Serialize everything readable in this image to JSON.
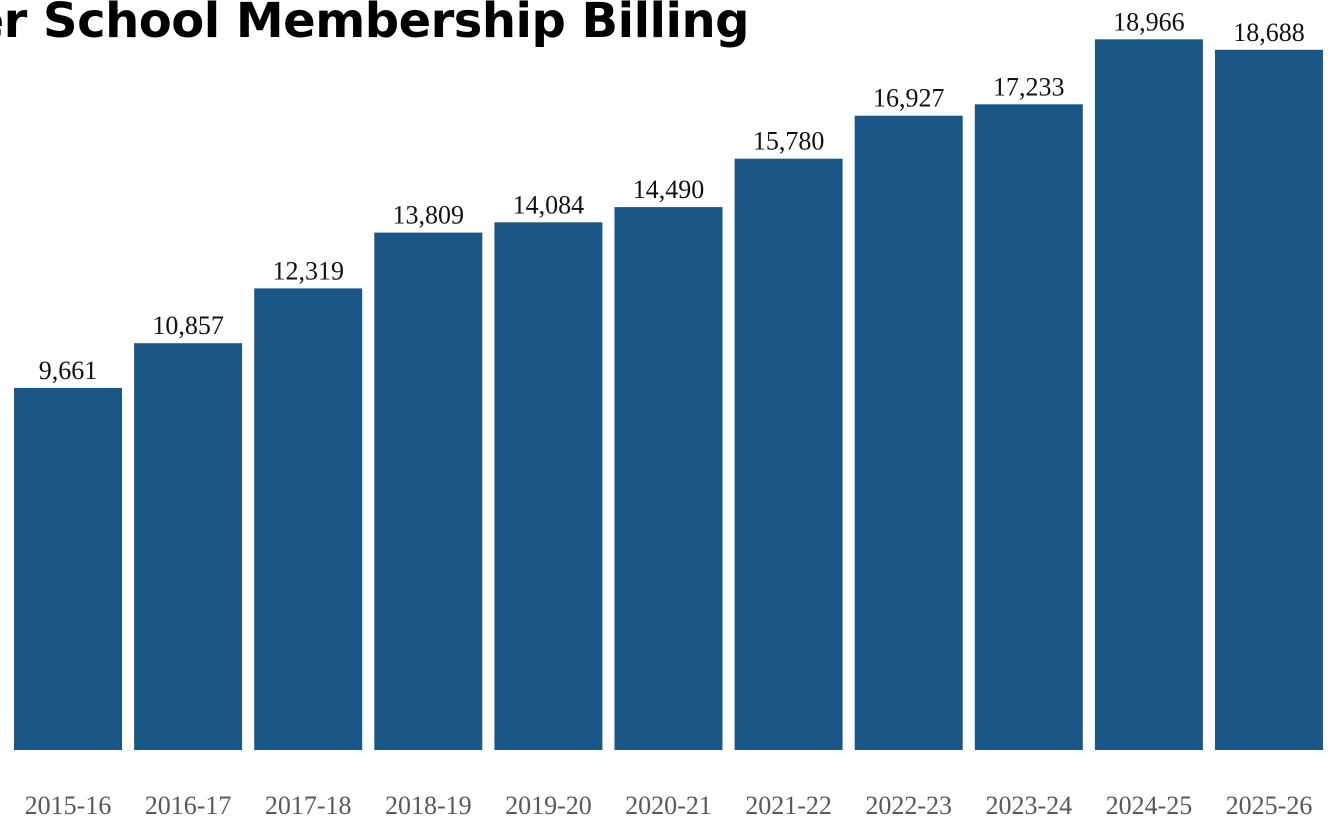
{
  "chart_data": {
    "type": "bar",
    "title": "rter School Membership Billing",
    "categories": [
      "2015-16",
      "2016-17",
      "2017-18",
      "2018-19",
      "2019-20",
      "2020-21",
      "2021-22",
      "2022-23",
      "2023-24",
      "2024-25",
      "2025-26"
    ],
    "series": [
      {
        "values": [
          9661,
          10857,
          12319,
          13809,
          14084,
          14490,
          15780,
          16927,
          17233,
          18966,
          18688
        ]
      }
    ],
    "value_labels": [
      "9,661",
      "10,857",
      "12,319",
      "13,809",
      "14,084",
      "14,490",
      "15,780",
      "16,927",
      "17,233",
      "18,966",
      "18,688"
    ],
    "xlabel": "",
    "ylabel": "",
    "ylim": [
      0,
      19500
    ],
    "grid": false,
    "legend": "none",
    "bar_color": "#1a5787"
  }
}
